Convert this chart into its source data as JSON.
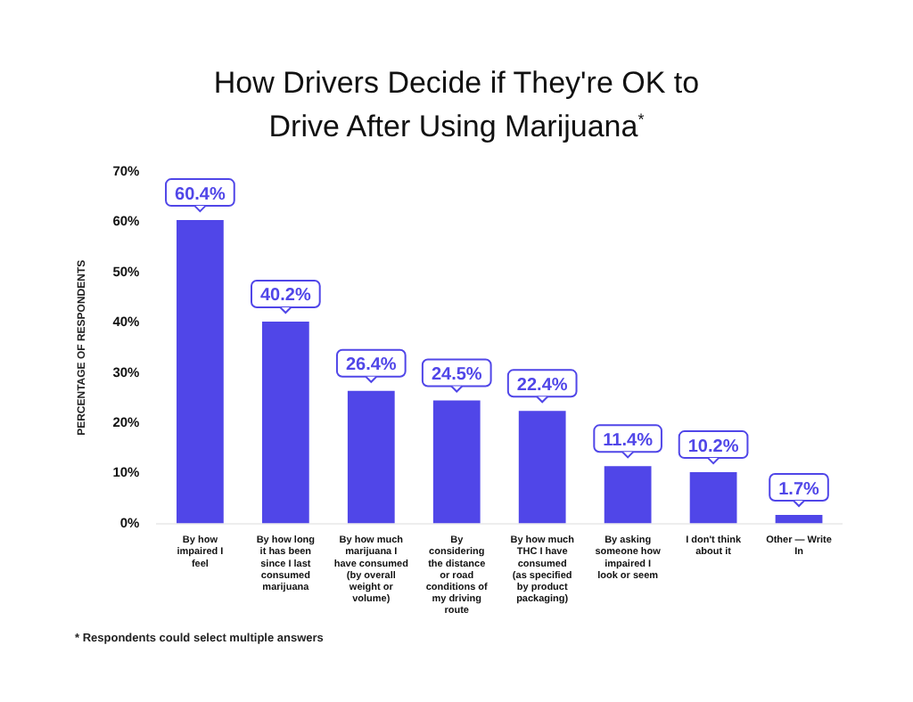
{
  "chart_data": {
    "type": "bar",
    "title": "How Drivers Decide if They're OK to Drive After Using Marijuana$^{*}$",
    "ylabel": "PERCENTAGE OF RESPONDENTS",
    "categories": [
      "By how impaired I feel",
      "By how long it has been since I last consumed marijuana",
      "By how much marijuana I have consumed (by overall weight or volume)",
      "By considering the distance or road conditions of my driving route",
      "By how much THC I have consumed (as specified by product packaging)",
      "By asking someone how impaired I look or seem",
      "I don't think about it",
      "Other — Write In"
    ],
    "values": [
      60.4,
      40.2,
      26.4,
      24.5,
      22.4,
      11.4,
      10.2,
      1.7
    ],
    "value_labels": [
      "60.4%",
      "40.2%",
      "26.4%",
      "24.5%",
      "22.4%",
      "11.4%",
      "10.2%",
      "1.7%"
    ],
    "color": "#5046e8",
    "ylim": [
      0,
      70
    ],
    "yticks": [
      {
        "value": 0,
        "label": "0%"
      },
      {
        "value": 10,
        "label": "10%"
      },
      {
        "value": 20,
        "label": "20%"
      },
      {
        "value": 30,
        "label": "30%"
      },
      {
        "value": 40,
        "label": "40%"
      },
      {
        "value": 50,
        "label": "50%"
      },
      {
        "value": 60,
        "label": "60%"
      },
      {
        "value": 70,
        "label": "70%"
      }
    ],
    "grid": false,
    "legend": false,
    "annotations": [
      "* Respondents could select multiple answers"
    ]
  }
}
